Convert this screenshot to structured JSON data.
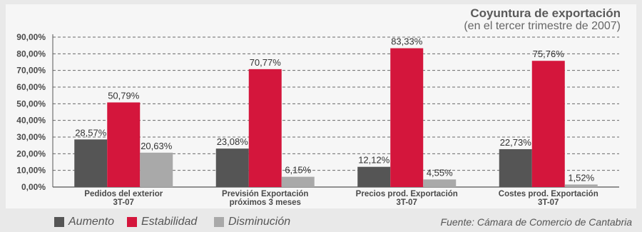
{
  "chart_data": {
    "type": "bar",
    "title": "Coyuntura de exportación",
    "subtitle": "(en el tercer trimestre de 2007)",
    "categories": [
      [
        "Pedidos del exterior",
        "3T-07"
      ],
      [
        "Previsión Exportación",
        "próximos 3 meses"
      ],
      [
        "Precios prod. Exportación",
        "3T-07"
      ],
      [
        "Costes prod. Exportación",
        "3T-07"
      ]
    ],
    "series": [
      {
        "name": "Aumento",
        "color": "#555555",
        "values": [
          28.57,
          23.08,
          12.12,
          22.73
        ],
        "labels": [
          "28,57%",
          "23,08%",
          "12,12%",
          "22,73%"
        ]
      },
      {
        "name": "Estabilidad",
        "color": "#d4163c",
        "values": [
          50.79,
          70.77,
          83.33,
          75.76
        ],
        "labels": [
          "50,79%",
          "70,77%",
          "83,33%",
          "75,76%"
        ]
      },
      {
        "name": "Disminución",
        "color": "#a9a9a9",
        "values": [
          20.63,
          6.15,
          4.55,
          1.52
        ],
        "labels": [
          "20,63%",
          "6,15%",
          "4,55%",
          "1,52%"
        ]
      }
    ],
    "ylim": [
      0,
      90
    ],
    "yticks": [
      "0,00%",
      "10,00%",
      "20,00%",
      "30,00%",
      "40,00%",
      "50,00%",
      "60,00%",
      "70,00%",
      "80,00%",
      "90,00%"
    ],
    "grid": true,
    "legend_position": "bottom-left",
    "source": "Fuente: Cámara de Comercio de Cantabria"
  }
}
